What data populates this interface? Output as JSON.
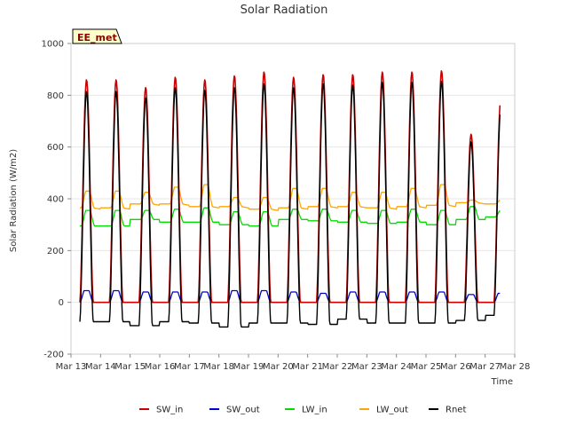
{
  "chart_data": {
    "type": "line",
    "title": "Solar Radiation",
    "xlabel": "Time",
    "ylabel": "Solar Radiation (W/m2)",
    "badge": "EE_met",
    "ylim": [
      -200,
      1000
    ],
    "yticks": [
      -200,
      0,
      200,
      400,
      600,
      800,
      1000
    ],
    "xlim": [
      "Mar 13",
      "Mar 28"
    ],
    "xticks": [
      "Mar 13",
      "Mar 14",
      "Mar 15",
      "Mar 16",
      "Mar 17",
      "Mar 18",
      "Mar 19",
      "Mar 20",
      "Mar 21",
      "Mar 22",
      "Mar 23",
      "Mar 24",
      "Mar 25",
      "Mar 26",
      "Mar 27",
      "Mar 28"
    ],
    "x_day_start": "Mar 13",
    "data_range": [
      "Mar 13 (+0.3 d)",
      "Mar 27 (+0.5 d)"
    ],
    "background_bands": true,
    "legend_position": "bottom",
    "daily_peaks": {
      "days": [
        "Mar 14",
        "Mar 15",
        "Mar 16",
        "Mar 17",
        "Mar 18",
        "Mar 19",
        "Mar 20",
        "Mar 21",
        "Mar 22",
        "Mar 23",
        "Mar 24",
        "Mar 25",
        "Mar 26",
        "Mar 27"
      ],
      "SW_in": [
        860,
        830,
        870,
        860,
        875,
        890,
        870,
        880,
        880,
        890,
        890,
        895,
        650,
        780
      ],
      "SW_out": [
        45,
        40,
        40,
        40,
        45,
        45,
        40,
        35,
        40,
        40,
        40,
        40,
        30,
        35
      ],
      "LW_in_day": [
        355,
        355,
        360,
        365,
        350,
        350,
        360,
        360,
        355,
        355,
        360,
        355,
        370,
        355
      ],
      "LW_in_night": [
        295,
        320,
        310,
        310,
        300,
        295,
        320,
        315,
        310,
        305,
        310,
        300,
        320,
        330
      ],
      "LW_out_day": [
        430,
        425,
        445,
        455,
        405,
        405,
        440,
        440,
        425,
        425,
        440,
        455,
        395,
        395
      ],
      "LW_out_night": [
        365,
        380,
        380,
        370,
        370,
        360,
        365,
        370,
        370,
        365,
        370,
        375,
        385,
        380
      ],
      "Rnet_night": [
        -75,
        -90,
        -75,
        -80,
        -95,
        -80,
        -80,
        -85,
        -65,
        -80,
        -80,
        -80,
        -70,
        -50
      ]
    },
    "series": [
      {
        "name": "SW_in",
        "color": "#cc0000"
      },
      {
        "name": "SW_out",
        "color": "#0000cc"
      },
      {
        "name": "LW_in",
        "color": "#00dd00"
      },
      {
        "name": "LW_out",
        "color": "#ffa500"
      },
      {
        "name": "Rnet",
        "color": "#000000"
      }
    ]
  }
}
